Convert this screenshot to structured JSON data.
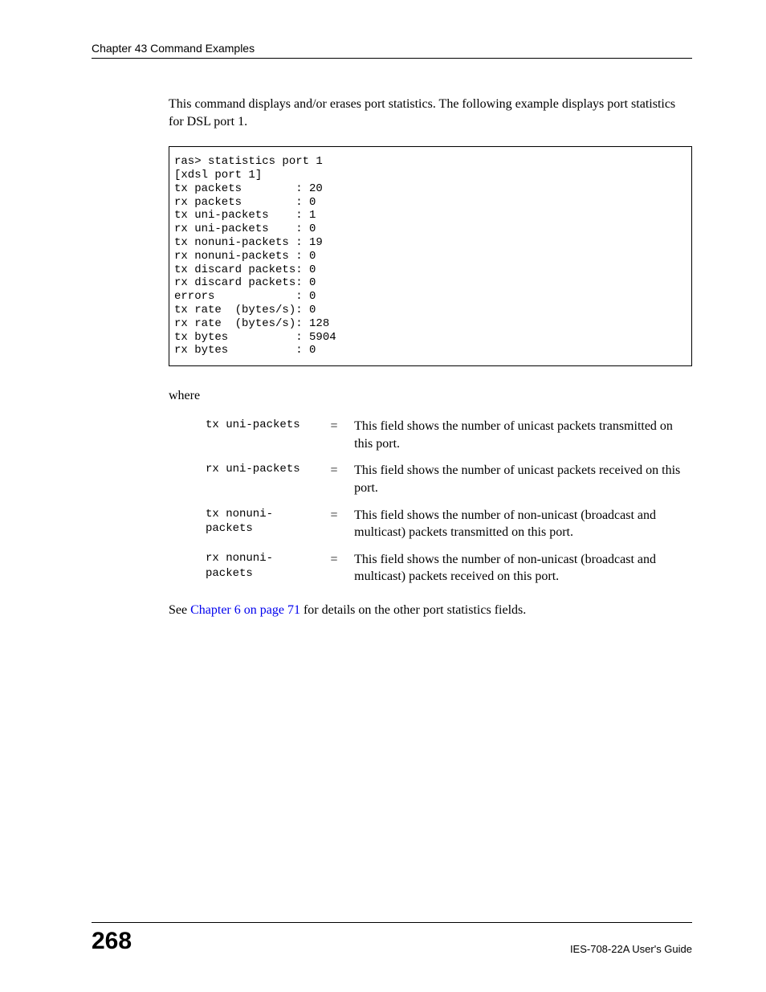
{
  "header": {
    "chapter_title": "Chapter 43 Command Examples"
  },
  "intro_text": "This command displays and/or erases port statistics. The following example displays port statistics for DSL port 1.",
  "code_block": "ras> statistics port 1\n[xdsl port 1]\ntx packets        : 20\nrx packets        : 0\ntx uni-packets    : 1\nrx uni-packets    : 0\ntx nonuni-packets : 19\nrx nonuni-packets : 0\ntx discard packets: 0\nrx discard packets: 0\nerrors            : 0\ntx rate  (bytes/s): 0\nrx rate  (bytes/s): 128\ntx bytes          : 5904\nrx bytes          : 0\n",
  "where_label": "where",
  "definitions": [
    {
      "term": "tx uni-packets",
      "eq": "=",
      "desc": "This field shows the number of unicast packets transmitted on this port."
    },
    {
      "term": "rx uni-packets",
      "eq": "=",
      "desc": "This field shows the number of unicast packets received on this port."
    },
    {
      "term": "tx nonuni-\npackets",
      "eq": "=",
      "desc": "This field shows the number of non-unicast (broadcast and multicast) packets transmitted on this port."
    },
    {
      "term": "rx nonuni-\npackets",
      "eq": "=",
      "desc": "This field shows the number of non-unicast (broadcast and multicast) packets received on this port."
    }
  ],
  "see_prefix": "See ",
  "see_link": "Chapter 6 on page 71",
  "see_suffix": " for details on the other port statistics fields.",
  "footer": {
    "page_number": "268",
    "guide": "IES-708-22A User's Guide"
  },
  "colors": {
    "text": "#000000",
    "link": "#0000ee",
    "background": "#ffffff",
    "rule": "#000000"
  },
  "typography": {
    "body_font": "Times New Roman",
    "body_size_pt": 12,
    "mono_font": "Courier New",
    "mono_size_pt": 10,
    "header_font": "Arial",
    "header_size_pt": 10,
    "page_num_size_pt": 22,
    "page_num_weight": "bold"
  }
}
